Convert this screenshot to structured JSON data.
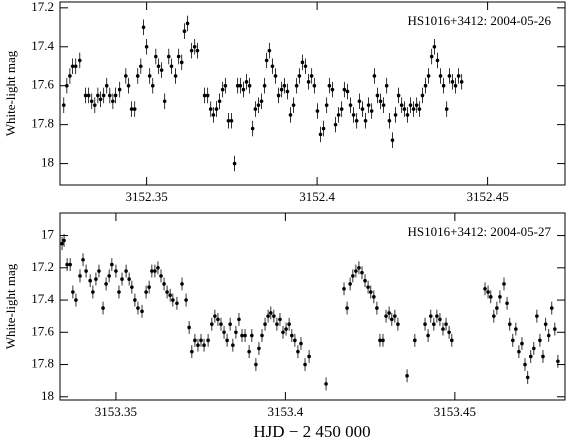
{
  "x_label": "HJD − 2 450 000",
  "chart_data": [
    {
      "type": "scatter",
      "y_label": "White-light mag",
      "annotation": "HS1016+3412: 2004-05-26",
      "color": "#000000",
      "error": 0.04,
      "xlim": [
        3152.3246,
        3152.4727
      ],
      "ylim": [
        17.17,
        18.11
      ],
      "y_inverted": true,
      "xticks": [
        3152.35,
        3152.4,
        3152.45
      ],
      "yticks": [
        17.2,
        17.4,
        17.6,
        17.8,
        18
      ],
      "x": [
        3152.3257,
        3152.3266,
        3152.3275,
        3152.3283,
        3152.3292,
        3152.3304,
        3152.3321,
        3152.333,
        3152.3339,
        3152.3348,
        3152.3357,
        3152.3365,
        3152.3374,
        3152.3383,
        3152.3392,
        3152.3401,
        3152.3409,
        3152.3421,
        3152.3439,
        3152.3447,
        3152.3456,
        3152.3465,
        3152.3474,
        3152.3483,
        3152.3491,
        3152.35,
        3152.3509,
        3152.3518,
        3152.3527,
        3152.3535,
        3152.3544,
        3152.3553,
        3152.3565,
        3152.3573,
        3152.3585,
        3152.3594,
        3152.3603,
        3152.3611,
        3152.362,
        3152.3632,
        3152.3641,
        3152.3649,
        3152.367,
        3152.3679,
        3152.3688,
        3152.3696,
        3152.3705,
        3152.3714,
        3152.3723,
        3152.3731,
        3152.374,
        3152.3749,
        3152.3758,
        3152.3767,
        3152.3775,
        3152.3784,
        3152.3793,
        3152.3802,
        3152.3811,
        3152.3819,
        3152.3828,
        3152.3837,
        3152.3846,
        3152.3852,
        3152.386,
        3152.3869,
        3152.3878,
        3152.3887,
        3152.3896,
        3152.3904,
        3152.3913,
        3152.3922,
        3152.3931,
        3152.394,
        3152.3948,
        3152.3957,
        3152.3966,
        3152.3975,
        3152.3984,
        3152.3992,
        3152.4001,
        3152.401,
        3152.4019,
        3152.4028,
        3152.4036,
        3152.4045,
        3152.4054,
        3152.4063,
        3152.4072,
        3152.408,
        3152.4089,
        3152.4098,
        3152.4107,
        3152.4116,
        3152.4124,
        3152.4133,
        3152.4142,
        3152.4151,
        3152.416,
        3152.4168,
        3152.4177,
        3152.4186,
        3152.4195,
        3152.4204,
        3152.4212,
        3152.4221,
        3152.423,
        3152.4239,
        3152.4248,
        3152.4256,
        3152.4265,
        3152.4274,
        3152.4283,
        3152.4292,
        3152.43,
        3152.4309,
        3152.4318,
        3152.4327,
        3152.4336,
        3152.4344,
        3152.4353,
        3152.4362,
        3152.4371,
        3152.438,
        3152.4388,
        3152.4397,
        3152.4406,
        3152.4415,
        3152.4424
      ],
      "values": [
        17.7,
        17.6,
        17.55,
        17.5,
        17.5,
        17.47,
        17.65,
        17.65,
        17.68,
        17.7,
        17.65,
        17.67,
        17.65,
        17.6,
        17.65,
        17.68,
        17.65,
        17.62,
        17.55,
        17.6,
        17.72,
        17.72,
        17.55,
        17.5,
        17.3,
        17.4,
        17.55,
        17.6,
        17.45,
        17.5,
        17.52,
        17.68,
        17.45,
        17.5,
        17.55,
        17.45,
        17.48,
        17.32,
        17.28,
        17.42,
        17.4,
        17.42,
        17.65,
        17.65,
        17.72,
        17.75,
        17.72,
        17.68,
        17.62,
        17.6,
        17.78,
        17.78,
        18.0,
        17.6,
        17.6,
        17.62,
        17.58,
        17.6,
        17.82,
        17.72,
        17.7,
        17.68,
        17.6,
        17.47,
        17.42,
        17.5,
        17.55,
        17.65,
        17.62,
        17.6,
        17.63,
        17.75,
        17.7,
        17.6,
        17.55,
        17.48,
        17.5,
        17.58,
        17.55,
        17.6,
        17.73,
        17.85,
        17.82,
        17.7,
        17.6,
        17.62,
        17.8,
        17.75,
        17.72,
        17.62,
        17.63,
        17.7,
        17.75,
        17.78,
        17.68,
        17.72,
        17.78,
        17.7,
        17.73,
        17.55,
        17.65,
        17.68,
        17.7,
        17.6,
        17.78,
        17.88,
        17.75,
        17.65,
        17.7,
        17.72,
        17.75,
        17.7,
        17.72,
        17.7,
        17.72,
        17.65,
        17.6,
        17.55,
        17.45,
        17.4,
        17.47,
        17.55,
        17.6,
        17.72,
        17.55,
        17.58,
        17.6,
        17.55,
        17.58
      ]
    },
    {
      "type": "scatter",
      "y_label": "White-light mag",
      "annotation": "HS1016+3412: 2004-05-27",
      "color": "#000000",
      "error": 0.04,
      "xlim": [
        3153.3335,
        3153.4825
      ],
      "ylim": [
        16.86,
        18.02
      ],
      "y_inverted": true,
      "xticks": [
        3153.35,
        3153.4,
        3153.45
      ],
      "yticks": [
        17,
        17.2,
        17.4,
        17.6,
        17.8,
        18
      ],
      "x": [
        3153.3341,
        3153.3347,
        3153.3356,
        3153.3365,
        3153.3373,
        3153.3382,
        3153.3394,
        3153.3403,
        3153.3412,
        3153.3424,
        3153.3432,
        3153.3441,
        3153.345,
        3153.3462,
        3153.3471,
        3153.348,
        3153.3488,
        3153.35,
        3153.3509,
        3153.3518,
        3153.353,
        3153.3539,
        3153.3547,
        3153.3556,
        3153.3565,
        3153.3577,
        3153.3589,
        3153.3598,
        3153.3606,
        3153.3615,
        3153.3624,
        3153.3633,
        3153.3642,
        3153.3651,
        3153.366,
        3153.3668,
        3153.368,
        3153.3695,
        3153.3707,
        3153.3716,
        3153.3724,
        3153.3733,
        3153.3742,
        3153.3751,
        3153.376,
        3153.3772,
        3153.3783,
        3153.3792,
        3153.3801,
        3153.381,
        3153.3819,
        3153.3828,
        3153.3837,
        3153.3845,
        3153.3854,
        3153.3863,
        3153.3872,
        3153.3881,
        3153.3893,
        3153.3901,
        3153.3913,
        3153.3922,
        3153.3931,
        3153.394,
        3153.3949,
        3153.3957,
        3153.3966,
        3153.3975,
        3153.3984,
        3153.3993,
        3153.4002,
        3153.4011,
        3153.4019,
        3153.4028,
        3153.4037,
        3153.4046,
        3153.4058,
        3153.407,
        3153.412,
        3153.4173,
        3153.4182,
        3153.4191,
        3153.4199,
        3153.4208,
        3153.4217,
        3153.4226,
        3153.4235,
        3153.4244,
        3153.4252,
        3153.4261,
        3153.427,
        3153.4279,
        3153.4288,
        3153.4297,
        3153.4306,
        3153.4314,
        3153.4323,
        3153.4332,
        3153.4359,
        3153.4382,
        3153.4412,
        3153.4421,
        3153.4429,
        3153.4438,
        3153.4447,
        3153.4456,
        3153.4465,
        3153.4474,
        3153.4483,
        3153.4491,
        3153.4589,
        3153.4598,
        3153.4606,
        3153.4615,
        3153.4624,
        3153.4633,
        3153.4645,
        3153.4654,
        3153.4662,
        3153.4671,
        3153.468,
        3153.4689,
        3153.4698,
        3153.4707,
        3153.4715,
        3153.4724,
        3153.4733,
        3153.4742,
        3153.4751,
        3153.476,
        3153.4768,
        3153.4777,
        3153.4786,
        3153.4795,
        3153.4804
      ],
      "values": [
        17.05,
        17.03,
        17.18,
        17.18,
        17.35,
        17.4,
        17.25,
        17.15,
        17.22,
        17.28,
        17.35,
        17.27,
        17.22,
        17.45,
        17.3,
        17.25,
        17.18,
        17.22,
        17.35,
        17.27,
        17.22,
        17.27,
        17.32,
        17.4,
        17.45,
        17.47,
        17.35,
        17.32,
        17.22,
        17.22,
        17.2,
        17.25,
        17.3,
        17.35,
        17.37,
        17.4,
        17.42,
        17.3,
        17.4,
        17.57,
        17.72,
        17.65,
        17.68,
        17.65,
        17.68,
        17.65,
        17.55,
        17.5,
        17.52,
        17.55,
        17.6,
        17.65,
        17.55,
        17.68,
        17.6,
        17.52,
        17.62,
        17.62,
        17.72,
        17.62,
        17.8,
        17.7,
        17.62,
        17.55,
        17.5,
        17.48,
        17.5,
        17.55,
        17.52,
        17.6,
        17.58,
        17.55,
        17.62,
        17.65,
        17.72,
        17.67,
        17.8,
        17.75,
        17.92,
        17.33,
        17.45,
        17.3,
        17.25,
        17.22,
        17.2,
        17.23,
        17.28,
        17.32,
        17.35,
        17.38,
        17.45,
        17.65,
        17.65,
        17.5,
        17.48,
        17.52,
        17.5,
        17.55,
        17.87,
        17.65,
        17.55,
        17.62,
        17.5,
        17.55,
        17.5,
        17.52,
        17.58,
        17.55,
        17.6,
        17.65,
        17.33,
        17.35,
        17.38,
        17.5,
        17.45,
        17.38,
        17.3,
        17.42,
        17.55,
        17.65,
        17.58,
        17.72,
        17.67,
        17.8,
        17.88,
        17.75,
        17.7,
        17.5,
        17.65,
        17.75,
        17.55,
        17.62,
        17.45,
        17.58,
        17.78
      ]
    }
  ]
}
